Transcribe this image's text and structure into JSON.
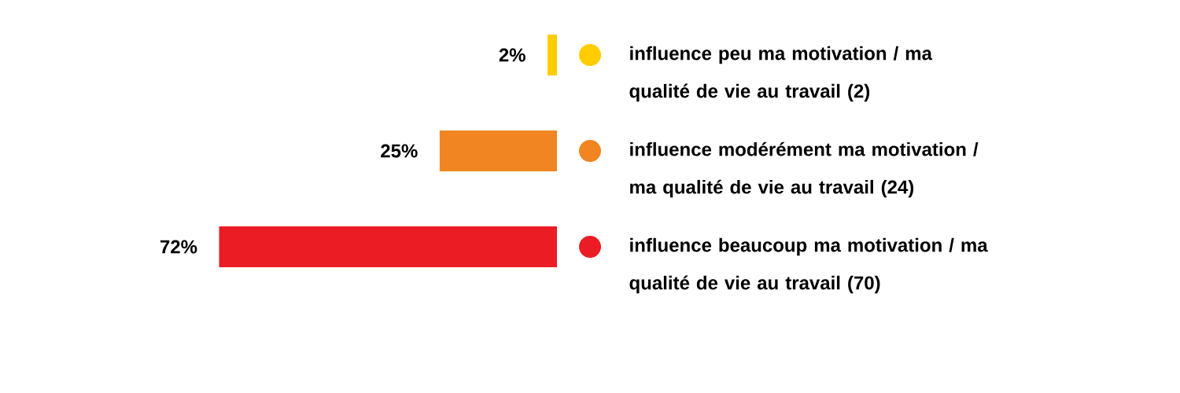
{
  "chart_data": {
    "type": "bar",
    "orientation": "horizontal",
    "categories": [
      "influence peu ma motivation / ma qualité de vie au travail (2)",
      "influence modérément ma motivation / ma qualité de vie au travail (24)",
      "influence beaucoup ma motivation / ma qualité de vie au travail (70)"
    ],
    "values": [
      2,
      25,
      72
    ],
    "value_labels": [
      "2%",
      "25%",
      "72%"
    ],
    "colors": [
      "#ffcc00",
      "#f08522",
      "#ec1c24"
    ]
  }
}
